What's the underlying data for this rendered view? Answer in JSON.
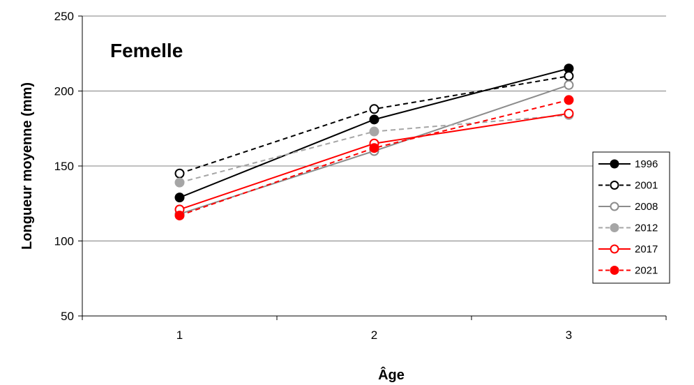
{
  "chart_data": {
    "type": "line",
    "title": "Femelle",
    "xlabel": "Âge",
    "ylabel": "Longueur moyenne (mm)",
    "x": [
      1,
      2,
      3
    ],
    "x_tick_labels": [
      "1",
      "2",
      "3"
    ],
    "ylim": [
      50,
      250
    ],
    "y_ticks": [
      50,
      100,
      150,
      200,
      250
    ],
    "grid": "horizontal",
    "legend_position": "right",
    "series": [
      {
        "name": "1996",
        "values": [
          129,
          181,
          215
        ],
        "color": "#000000",
        "dash": "solid",
        "marker": "filled-circle"
      },
      {
        "name": "2001",
        "values": [
          145,
          188,
          210
        ],
        "color": "#000000",
        "dash": "dashed",
        "marker": "open-circle"
      },
      {
        "name": "2008",
        "values": [
          118,
          160,
          204
        ],
        "color": "#8c8c8c",
        "dash": "solid",
        "marker": "open-circle"
      },
      {
        "name": "2012",
        "values": [
          139,
          173,
          184
        ],
        "color": "#a6a6a6",
        "dash": "dashed",
        "marker": "filled-circle"
      },
      {
        "name": "2017",
        "values": [
          121,
          165,
          185
        ],
        "color": "#ff0000",
        "dash": "solid",
        "marker": "open-circle"
      },
      {
        "name": "2021",
        "values": [
          117,
          162,
          194
        ],
        "color": "#ff0000",
        "dash": "dashed",
        "marker": "filled-circle"
      }
    ]
  }
}
